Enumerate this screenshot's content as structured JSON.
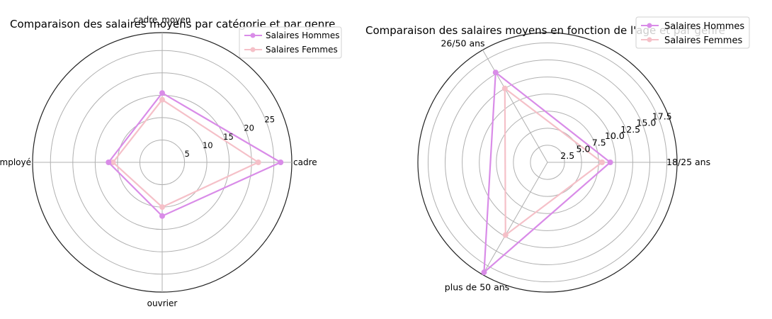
{
  "colors": {
    "men": "#d98ce8",
    "women": "#f5c0c8",
    "grid": "#b0b0b0",
    "frame": "#222222"
  },
  "chart_data": [
    {
      "type": "radar",
      "title": "Comparaison des salaires moyens par catégorie et par genre",
      "categories": [
        "cadre",
        "cadre_moyen",
        "employé",
        "ouvrier"
      ],
      "rlim": [
        0,
        29
      ],
      "rticks": [
        "5",
        "10",
        "15",
        "20",
        "25"
      ],
      "grid": true,
      "legend": "top-right",
      "series": [
        {
          "name": "Salaires Hommes",
          "values": [
            26.5,
            15.5,
            12.0,
            12.0
          ]
        },
        {
          "name": "Salaires Femmes",
          "values": [
            21.5,
            14.0,
            11.0,
            10.0
          ]
        }
      ]
    },
    {
      "type": "radar",
      "title": "Comparaison des salaires moyens en fonction de l'age et par genre",
      "categories": [
        "18/25 ans",
        "26/50 ans",
        "plus de 50 ans"
      ],
      "rlim": [
        0,
        19
      ],
      "rticks": [
        "2.5",
        "5.0",
        "7.5",
        "10.0",
        "12.5",
        "15.0",
        "17.5"
      ],
      "grid": true,
      "legend": "top-right",
      "series": [
        {
          "name": "Salaires Hommes",
          "values": [
            9.2,
            15.2,
            18.6
          ]
        },
        {
          "name": "Salaires Femmes",
          "values": [
            8.0,
            12.5,
            12.3
          ]
        }
      ]
    }
  ]
}
